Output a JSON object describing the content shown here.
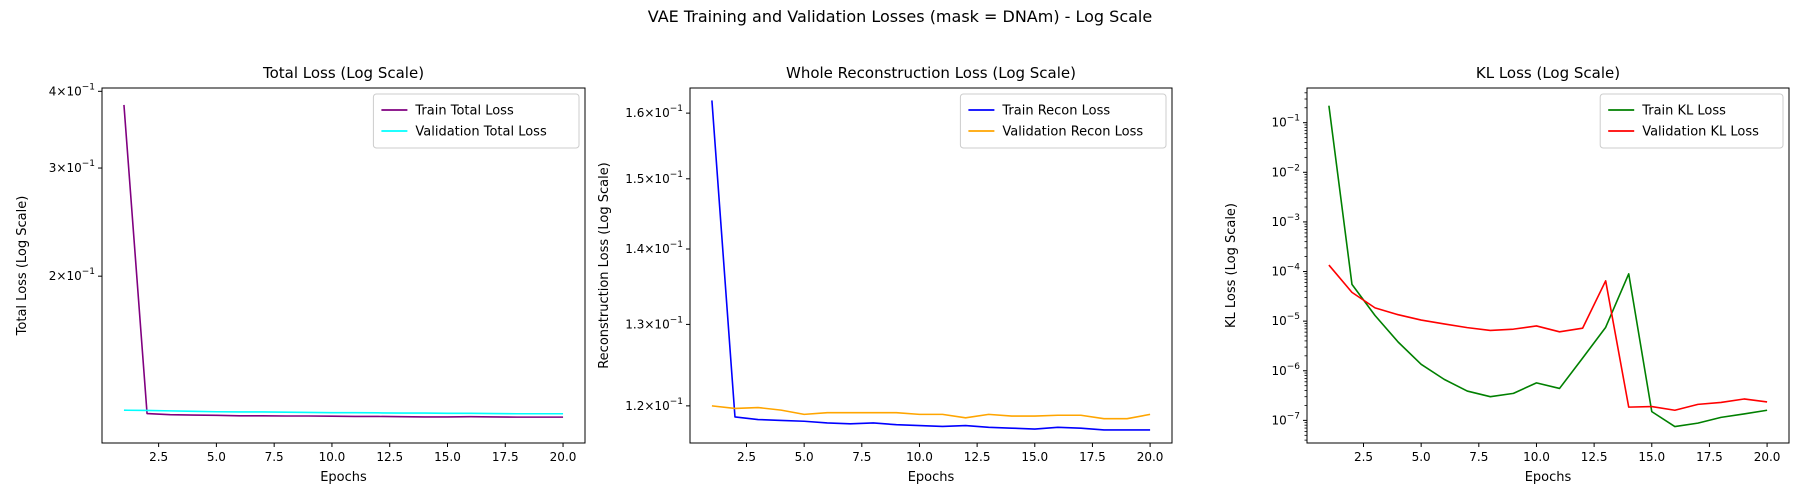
{
  "figure": {
    "suptitle": "VAE Training and Validation Losses (mask = DNAm) - Log Scale"
  },
  "chart_data": [
    {
      "type": "line",
      "title": "Total Loss (Log Scale)",
      "xlabel": "Epochs",
      "ylabel": "Total Loss (Log Scale)",
      "yscale": "log",
      "xlim": [
        0.05,
        20.95
      ],
      "ylim": [
        0.107,
        0.405
      ],
      "xticks": [
        2.5,
        5.0,
        7.5,
        10.0,
        12.5,
        15.0,
        17.5,
        20.0
      ],
      "xtick_labels": [
        "2.5",
        "5.0",
        "7.5",
        "10.0",
        "12.5",
        "15.0",
        "17.5",
        "20.0"
      ],
      "yticks": [
        0.2,
        0.3,
        0.4
      ],
      "ytick_labels": [
        {
          "base": "2",
          "exp": "-1"
        },
        {
          "base": "3",
          "exp": "-1"
        },
        {
          "base": "4",
          "exp": "-1"
        }
      ],
      "legend_position": "top-right",
      "x": [
        1,
        2,
        3,
        4,
        5,
        6,
        7,
        8,
        9,
        10,
        11,
        12,
        13,
        14,
        15,
        16,
        17,
        18,
        19,
        20
      ],
      "series": [
        {
          "name": "Train Total Loss",
          "color": "#800080",
          "values": [
            0.38,
            0.1195,
            0.119,
            0.1188,
            0.1187,
            0.1185,
            0.1185,
            0.1184,
            0.1184,
            0.1183,
            0.1182,
            0.1182,
            0.1181,
            0.118,
            0.118,
            0.1181,
            0.118,
            0.1179,
            0.1179,
            0.1179
          ]
        },
        {
          "name": "Validation Total Loss",
          "color": "#00ffff",
          "values": [
            0.121,
            0.1209,
            0.1207,
            0.1205,
            0.1203,
            0.1202,
            0.1202,
            0.1201,
            0.12,
            0.1199,
            0.1199,
            0.1198,
            0.1197,
            0.1197,
            0.1196,
            0.1196,
            0.1195,
            0.1194,
            0.1194,
            0.1194
          ]
        }
      ]
    },
    {
      "type": "line",
      "title": "Whole Reconstruction Loss (Log Scale)",
      "xlabel": "Epochs",
      "ylabel": "Reconstruction Loss (Log Scale)",
      "yscale": "log",
      "xlim": [
        0.05,
        20.95
      ],
      "ylim": [
        0.1157,
        0.164
      ],
      "xticks": [
        2.5,
        5.0,
        7.5,
        10.0,
        12.5,
        15.0,
        17.5,
        20.0
      ],
      "xtick_labels": [
        "2.5",
        "5.0",
        "7.5",
        "10.0",
        "12.5",
        "15.0",
        "17.5",
        "20.0"
      ],
      "yticks": [
        0.12,
        0.13,
        0.14,
        0.15,
        0.16
      ],
      "ytick_labels": [
        {
          "base": "1.2",
          "exp": "-1"
        },
        {
          "base": "1.3",
          "exp": "-1"
        },
        {
          "base": "1.4",
          "exp": "-1"
        },
        {
          "base": "1.5",
          "exp": "-1"
        },
        {
          "base": "1.6",
          "exp": "-1"
        }
      ],
      "legend_position": "top-right",
      "x": [
        1,
        2,
        3,
        4,
        5,
        6,
        7,
        8,
        9,
        10,
        11,
        12,
        13,
        14,
        15,
        16,
        17,
        18,
        19,
        20
      ],
      "series": [
        {
          "name": "Train Recon Loss",
          "color": "#0000ff",
          "values": [
            0.162,
            0.1187,
            0.1184,
            0.1183,
            0.1182,
            0.118,
            0.1179,
            0.118,
            0.1178,
            0.1177,
            0.1176,
            0.1177,
            0.1175,
            0.1174,
            0.1173,
            0.1175,
            0.1174,
            0.1172,
            0.1172,
            0.1172
          ]
        },
        {
          "name": "Validation Recon Loss",
          "color": "#ffa500",
          "values": [
            0.12,
            0.1197,
            0.1198,
            0.1195,
            0.119,
            0.1192,
            0.1192,
            0.1192,
            0.1192,
            0.119,
            0.119,
            0.1186,
            0.119,
            0.1188,
            0.1188,
            0.1189,
            0.1189,
            0.1185,
            0.1185,
            0.119
          ]
        }
      ]
    },
    {
      "type": "line",
      "title": "KL Loss (Log Scale)",
      "xlabel": "Epochs",
      "ylabel": "KL Loss (Log Scale)",
      "yscale": "log",
      "xlim": [
        0.05,
        20.95
      ],
      "ylim": [
        3.5e-08,
        0.5
      ],
      "xticks": [
        2.5,
        5.0,
        7.5,
        10.0,
        12.5,
        15.0,
        17.5,
        20.0
      ],
      "xtick_labels": [
        "2.5",
        "5.0",
        "7.5",
        "10.0",
        "12.5",
        "15.0",
        "17.5",
        "20.0"
      ],
      "yticks": [
        1e-07,
        1e-06,
        1e-05,
        0.0001,
        0.001,
        0.01,
        0.1
      ],
      "ytick_labels": [
        {
          "base": "10",
          "exp": "-7"
        },
        {
          "base": "10",
          "exp": "-6"
        },
        {
          "base": "10",
          "exp": "-5"
        },
        {
          "base": "10",
          "exp": "-4"
        },
        {
          "base": "10",
          "exp": "-3"
        },
        {
          "base": "10",
          "exp": "-2"
        },
        {
          "base": "10",
          "exp": "-1"
        }
      ],
      "legend_position": "top-right",
      "x": [
        1,
        2,
        3,
        4,
        5,
        6,
        7,
        8,
        9,
        10,
        11,
        12,
        13,
        14,
        15,
        16,
        17,
        18,
        19,
        20
      ],
      "series": [
        {
          "name": "Train KL Loss",
          "color": "#008000",
          "values": [
            0.22,
            5.5e-05,
            1.3e-05,
            3.8e-06,
            1.35e-06,
            6.7e-07,
            3.9e-07,
            3e-07,
            3.5e-07,
            5.7e-07,
            4.4e-07,
            1.8e-06,
            7.5e-06,
            9e-05,
            1.5e-07,
            7.5e-08,
            8.8e-08,
            1.15e-07,
            1.35e-07,
            1.6e-07
          ]
        },
        {
          "name": "Validation KL Loss",
          "color": "#ff0000",
          "values": [
            0.000135,
            3.8e-05,
            1.85e-05,
            1.35e-05,
            1.05e-05,
            8.8e-06,
            7.4e-06,
            6.5e-06,
            6.9e-06,
            8e-06,
            6.1e-06,
            7.2e-06,
            6.5e-05,
            1.85e-07,
            1.9e-07,
            1.6e-07,
            2.1e-07,
            2.3e-07,
            2.7e-07,
            2.35e-07
          ]
        }
      ]
    }
  ]
}
